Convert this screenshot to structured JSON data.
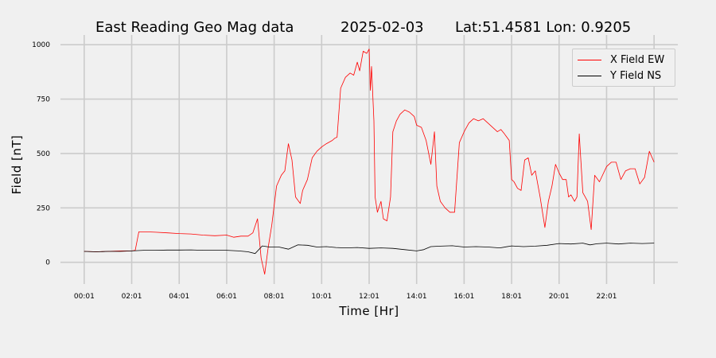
{
  "header": {
    "title": "East Reading Geo Mag data",
    "date": "2025-02-03",
    "location": "Lat:51.4581  Lon: 0.9205"
  },
  "colors": {
    "background": "#f0f0f0",
    "grid": "#cbcbcb",
    "x_field": "#ff0000",
    "y_field": "#000000"
  },
  "chart_data": {
    "type": "line",
    "xlabel": "Time  [Hr]",
    "ylabel": "Field  [nT]",
    "xlim_hours": [
      -1.0,
      25.0
    ],
    "ylim": [
      -100,
      1030
    ],
    "x_ticks": [
      {
        "value": 0,
        "label": "00:01"
      },
      {
        "value": 2,
        "label": "02:01"
      },
      {
        "value": 4,
        "label": "04:01"
      },
      {
        "value": 6,
        "label": "06:01"
      },
      {
        "value": 8,
        "label": "08:01"
      },
      {
        "value": 10,
        "label": "10:01"
      },
      {
        "value": 12,
        "label": "12:01"
      },
      {
        "value": 14,
        "label": "14:01"
      },
      {
        "value": 16,
        "label": "16:01"
      },
      {
        "value": 18,
        "label": "18:01"
      },
      {
        "value": 20,
        "label": "20:01"
      },
      {
        "value": 22,
        "label": "22:01"
      },
      {
        "value": 24,
        "label": ""
      }
    ],
    "y_ticks": [
      {
        "value": 0,
        "label": "0"
      },
      {
        "value": 250,
        "label": "250"
      },
      {
        "value": 500,
        "label": "500"
      },
      {
        "value": 750,
        "label": "750"
      },
      {
        "value": 1000,
        "label": "1000"
      }
    ],
    "grid": true,
    "legend_position": "top-right",
    "series": [
      {
        "name": "X Field EW",
        "color": "#ff0000",
        "x": [
          0,
          0.5,
          1,
          1.5,
          2,
          2.15,
          2.3,
          2.6,
          3,
          3.5,
          4,
          4.5,
          5,
          5.5,
          6,
          6.3,
          6.6,
          6.9,
          7.1,
          7.3,
          7.45,
          7.6,
          7.75,
          7.9,
          8.1,
          8.3,
          8.45,
          8.6,
          8.75,
          8.9,
          9.1,
          9.2,
          9.4,
          9.6,
          9.8,
          10,
          10.2,
          10.45,
          10.55,
          10.65,
          10.8,
          11,
          11.2,
          11.35,
          11.5,
          11.6,
          11.75,
          11.9,
          12.0,
          12.05,
          12.1,
          12.2,
          12.25,
          12.35,
          12.5,
          12.6,
          12.75,
          12.9,
          13.0,
          13.15,
          13.3,
          13.5,
          13.7,
          13.9,
          14.0,
          14.2,
          14.4,
          14.6,
          14.75,
          14.85,
          15.0,
          15.2,
          15.4,
          15.6,
          15.8,
          16.0,
          16.2,
          16.4,
          16.6,
          16.8,
          17.0,
          17.2,
          17.4,
          17.55,
          17.7,
          17.9,
          18.0,
          18.1,
          18.25,
          18.4,
          18.55,
          18.7,
          18.85,
          19.0,
          19.2,
          19.4,
          19.55,
          19.7,
          19.85,
          20.0,
          20.15,
          20.3,
          20.4,
          20.5,
          20.65,
          20.75,
          20.85,
          21.0,
          21.1,
          21.2,
          21.35,
          21.5,
          21.7,
          22.0,
          22.2,
          22.4,
          22.6,
          22.8,
          23.0,
          23.2,
          23.4,
          23.6,
          23.8,
          24.0
        ],
        "values": [
          50,
          48,
          50,
          52,
          52,
          55,
          140,
          140,
          138,
          135,
          132,
          130,
          125,
          122,
          125,
          115,
          120,
          120,
          135,
          200,
          20,
          -55,
          70,
          170,
          350,
          400,
          420,
          545,
          470,
          300,
          270,
          330,
          380,
          480,
          510,
          530,
          545,
          560,
          570,
          575,
          800,
          850,
          870,
          860,
          920,
          880,
          970,
          960,
          980,
          790,
          900,
          650,
          300,
          230,
          280,
          200,
          190,
          300,
          600,
          650,
          680,
          700,
          690,
          670,
          630,
          620,
          560,
          450,
          600,
          350,
          280,
          250,
          230,
          230,
          550,
          600,
          640,
          660,
          650,
          660,
          640,
          620,
          600,
          610,
          590,
          560,
          380,
          370,
          340,
          330,
          470,
          480,
          400,
          420,
          300,
          160,
          280,
          350,
          450,
          410,
          380,
          380,
          300,
          310,
          280,
          300,
          590,
          320,
          300,
          280,
          150,
          400,
          370,
          440,
          460,
          460,
          380,
          420,
          430,
          430,
          360,
          390,
          510,
          460
        ]
      },
      {
        "name": "Y Field NS",
        "color": "#000000",
        "x": [
          0,
          0.5,
          1,
          1.5,
          2,
          2.5,
          3,
          3.5,
          4,
          4.5,
          5,
          5.5,
          6,
          6.5,
          6.9,
          7.2,
          7.5,
          7.8,
          8.2,
          8.6,
          9,
          9.4,
          9.8,
          10.2,
          10.6,
          11,
          11.5,
          12,
          12.5,
          13,
          13.5,
          14,
          14.3,
          14.6,
          15,
          15.5,
          16,
          16.5,
          17,
          17.5,
          18,
          18.5,
          19,
          19.5,
          20,
          20.5,
          21,
          21.3,
          21.6,
          22,
          22.5,
          23,
          23.5,
          24
        ],
        "values": [
          50,
          48,
          50,
          50,
          52,
          55,
          55,
          56,
          56,
          57,
          55,
          55,
          55,
          52,
          48,
          40,
          75,
          70,
          70,
          60,
          80,
          78,
          70,
          72,
          68,
          66,
          68,
          64,
          66,
          64,
          58,
          52,
          58,
          72,
          74,
          76,
          70,
          72,
          70,
          66,
          75,
          72,
          74,
          78,
          86,
          84,
          88,
          80,
          85,
          88,
          84,
          88,
          86,
          88
        ]
      }
    ]
  }
}
